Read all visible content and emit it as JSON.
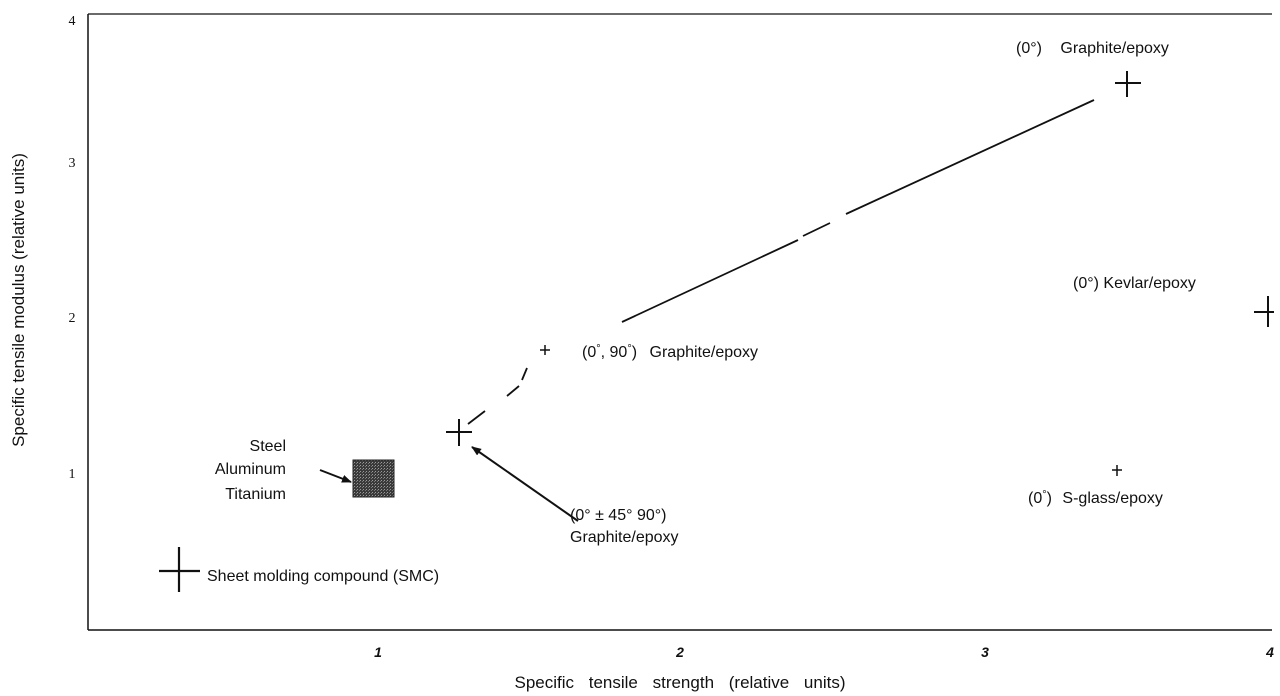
{
  "chart_data": {
    "type": "scatter",
    "xlabel": "Specific tensile strength (relative units)",
    "ylabel": "Specific tensile modulus (relative units)",
    "xlim": [
      0,
      4
    ],
    "ylim": [
      0,
      4
    ],
    "x_ticks": [
      "1",
      "2",
      "3",
      "4"
    ],
    "y_ticks": [
      "1",
      "2",
      "3",
      "4"
    ],
    "grid": false,
    "points": [
      {
        "name": "(0°) Graphite/epoxy",
        "x": 3.47,
        "y": 3.55
      },
      {
        "name": "(0°) Kevlar/epoxy",
        "x": 3.97,
        "y": 2.02
      },
      {
        "name": "(0°, 90°) Graphite/epoxy",
        "x": 1.55,
        "y": 1.78
      },
      {
        "name": "(0° ± 45° 90°) Graphite/epoxy",
        "x": 1.27,
        "y": 1.25
      },
      {
        "name": "(0°) S-glass/epoxy",
        "x": 3.47,
        "y": 1.0
      },
      {
        "name": "Sheet molding compound (SMC)",
        "x": 0.31,
        "y": 0.35
      }
    ],
    "region": {
      "name": "Steel Aluminum Titanium",
      "x": [
        0.9,
        1.05
      ],
      "y": [
        0.92,
        1.12
      ]
    },
    "trend_line_through": [
      "(0° ± 45° 90°) Graphite/epoxy",
      "(0°, 90°) Graphite/epoxy",
      "(0°) Graphite/epoxy"
    ],
    "labels": {
      "g0_a": "(0°)",
      "g0_b": "Graphite/epoxy",
      "kevlar": "(0°) Kevlar/epoxy",
      "g090_a": "(0",
      "g090_b": "°",
      "g090_c": ", 90",
      "g090_d": "°",
      "g090_e": ")",
      "g090_f": "Graphite/epoxy",
      "g45_a": "(0° ± 45° 90°)",
      "g45_b": "Graphite/epoxy",
      "sglass_a": "(0",
      "sglass_b": "°",
      "sglass_c": ")",
      "sglass_d": "S-glass/epoxy",
      "metals_1": "Steel",
      "metals_2": "Aluminum",
      "metals_3": "Titanium",
      "smc": "Sheet molding compound (SMC)"
    }
  }
}
